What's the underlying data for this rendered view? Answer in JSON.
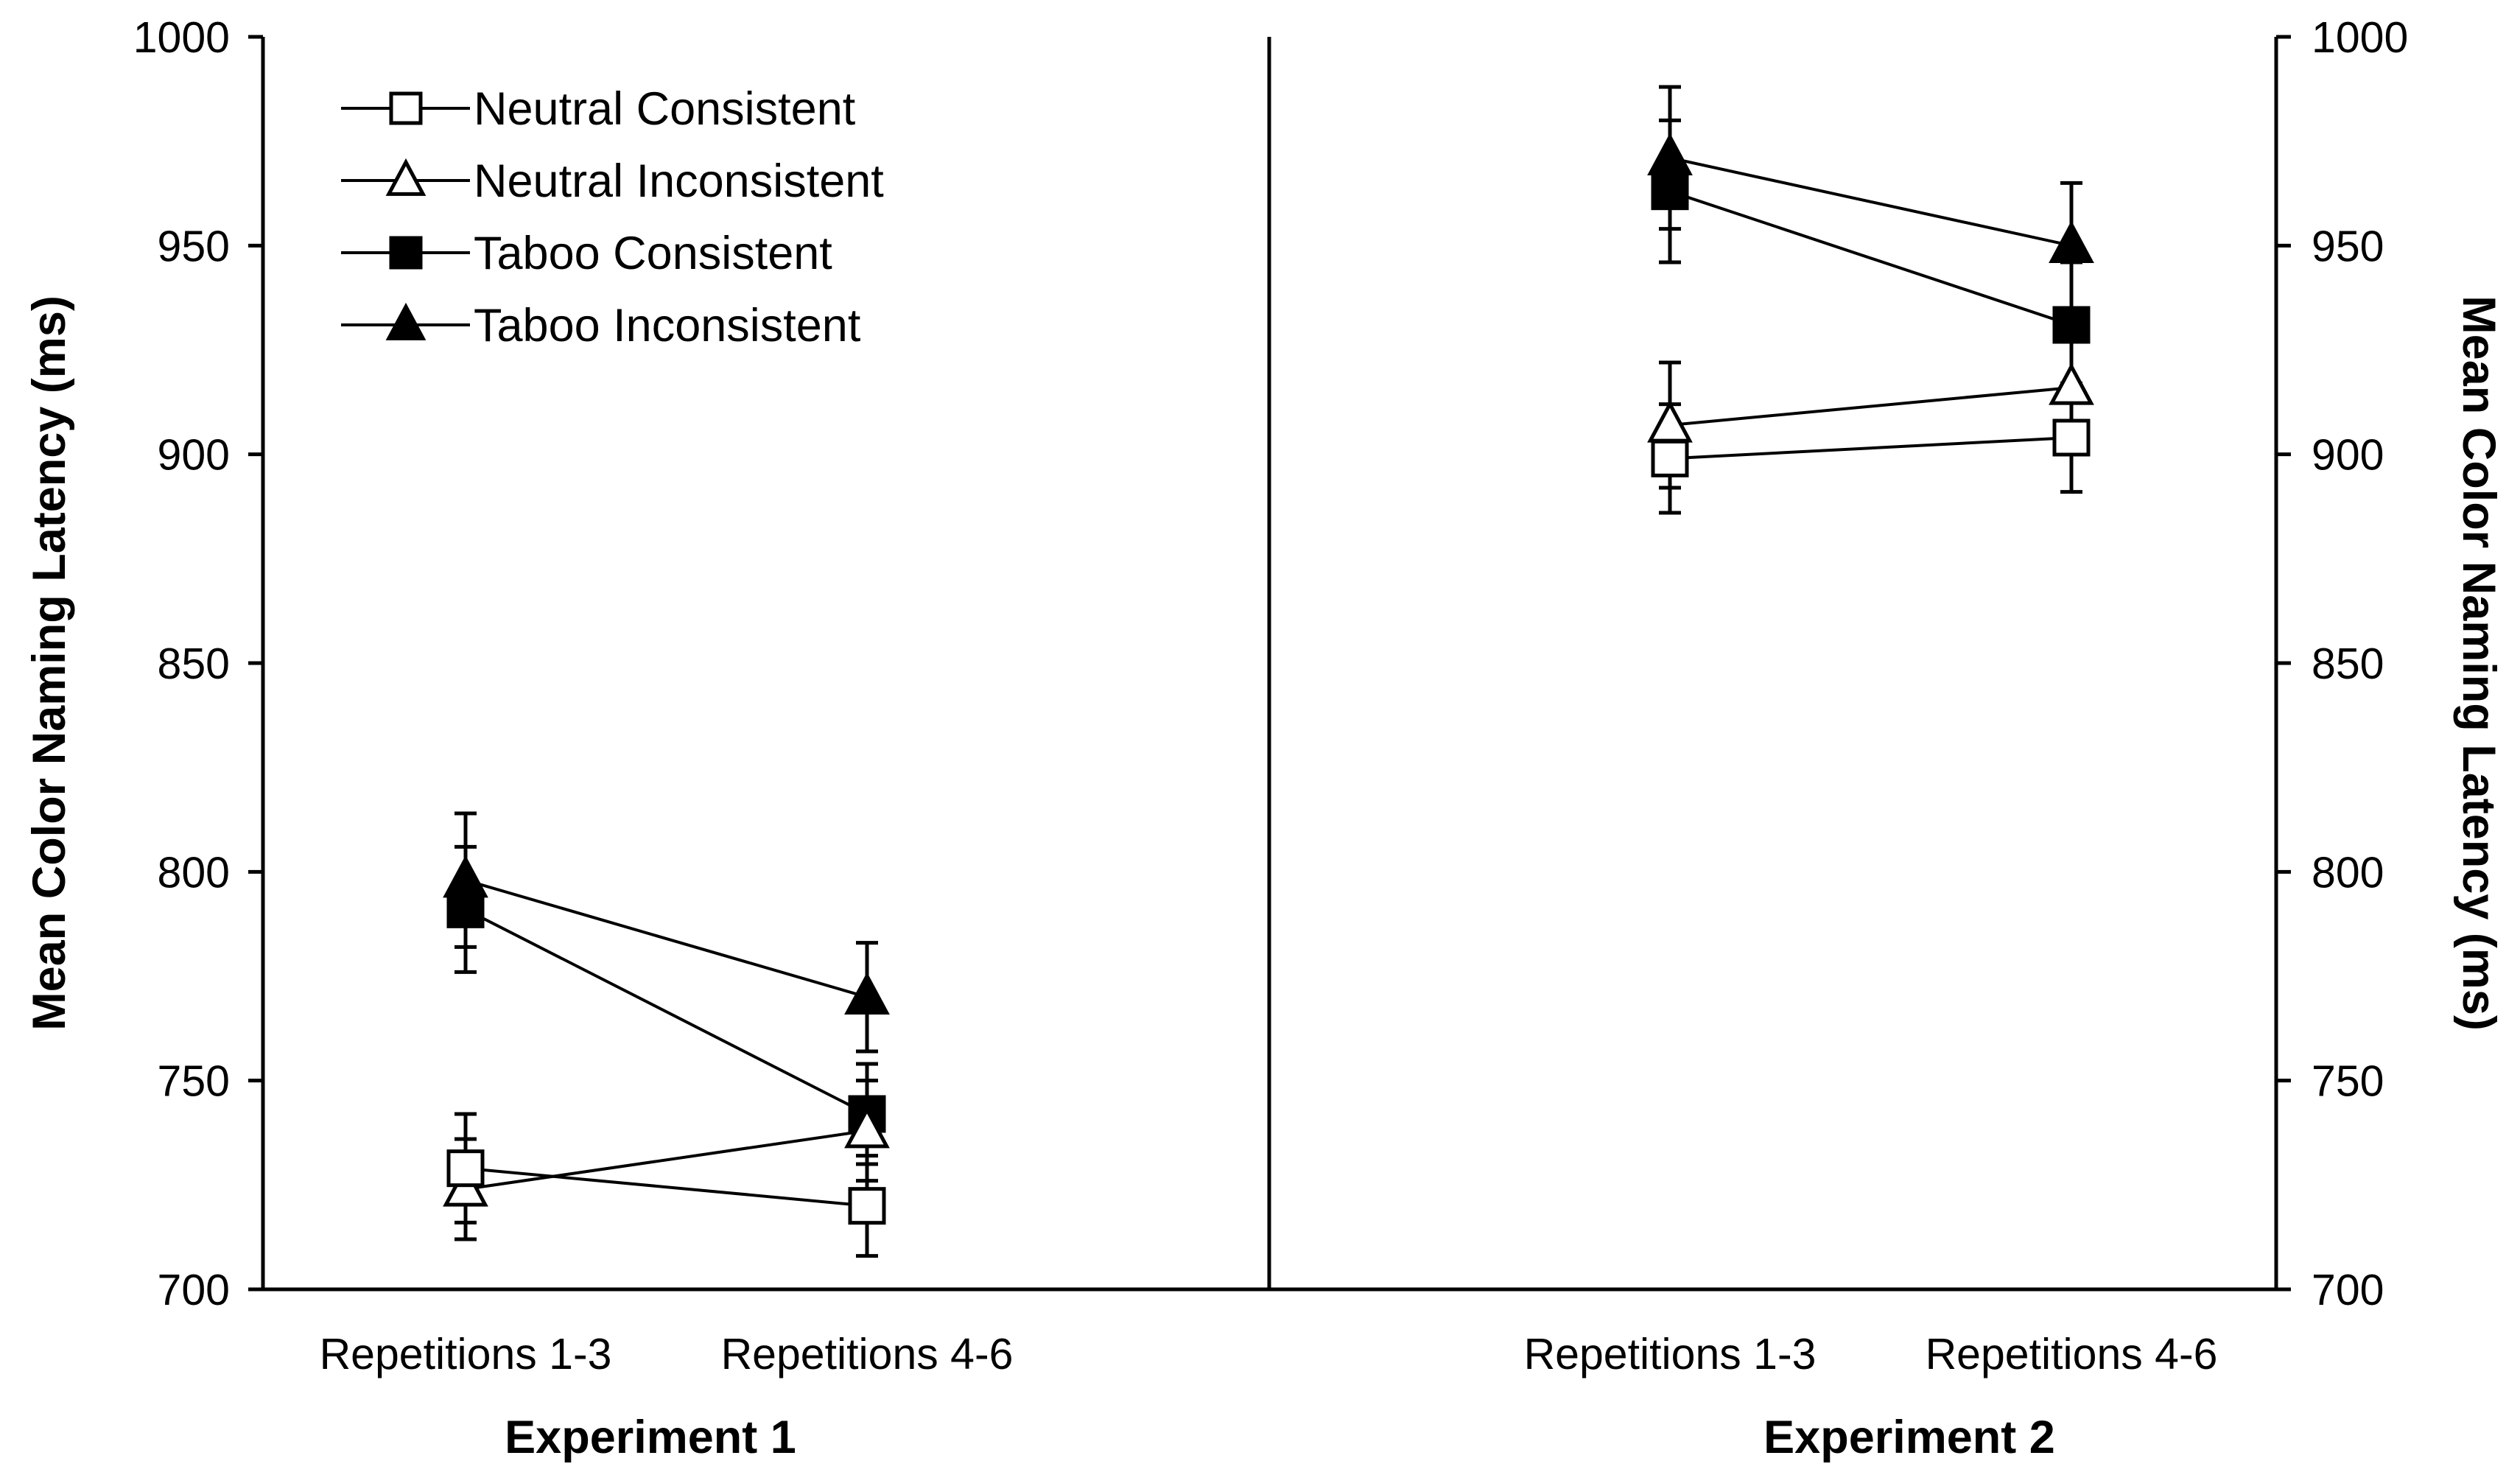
{
  "chart_data": {
    "type": "line",
    "title": "",
    "ylabel_left": "Mean Color Naming Latency (ms)",
    "ylabel_right": "Mean Color Naming Latency (ms)",
    "ylim": [
      700,
      1000
    ],
    "yticks": [
      700,
      750,
      800,
      850,
      900,
      950,
      1000
    ],
    "ytick_labels": [
      "700",
      "750",
      "800",
      "850",
      "900",
      "950",
      "1000"
    ],
    "grid": false,
    "legend_position": "top-left",
    "groups": [
      {
        "name": "Experiment 1",
        "categories": [
          "Repetitions 1-3",
          "Repetitions 4-6"
        ],
        "series": [
          {
            "name": "Neutral Consistent",
            "marker": "square-open",
            "values": [
              729,
              720
            ],
            "errors": [
              13,
              12
            ]
          },
          {
            "name": "Neutral Inconsistent",
            "marker": "triangle-open",
            "values": [
              724,
              738
            ],
            "errors": [
              12,
              12
            ]
          },
          {
            "name": "Taboo Consistent",
            "marker": "square-filled",
            "values": [
              791,
              742
            ],
            "errors": [
              15,
              12
            ]
          },
          {
            "name": "Taboo Inconsistent",
            "marker": "triangle-filled",
            "values": [
              798,
              770
            ],
            "errors": [
              16,
              13
            ]
          }
        ]
      },
      {
        "name": "Experiment 2",
        "categories": [
          "Repetitions 1-3",
          "Repetitions 4-6"
        ],
        "series": [
          {
            "name": "Neutral Consistent",
            "marker": "square-open",
            "values": [
              899,
              904
            ],
            "errors": [
              13,
              13
            ]
          },
          {
            "name": "Neutral Inconsistent",
            "marker": "triangle-open",
            "values": [
              907,
              916
            ],
            "errors": [
              15,
              13
            ]
          },
          {
            "name": "Taboo Consistent",
            "marker": "square-filled",
            "values": [
              963,
              931
            ],
            "errors": [
              17,
              15
            ]
          },
          {
            "name": "Taboo Inconsistent",
            "marker": "triangle-filled",
            "values": [
              971,
              950
            ],
            "errors": [
              17,
              15
            ]
          }
        ]
      }
    ],
    "legend": [
      {
        "label": "Neutral Consistent",
        "marker": "square-open"
      },
      {
        "label": "Neutral Inconsistent",
        "marker": "triangle-open"
      },
      {
        "label": "Taboo Consistent",
        "marker": "square-filled"
      },
      {
        "label": "Taboo Inconsistent",
        "marker": "triangle-filled"
      }
    ]
  },
  "colors": {
    "ink": "#000000",
    "background": "#ffffff"
  }
}
